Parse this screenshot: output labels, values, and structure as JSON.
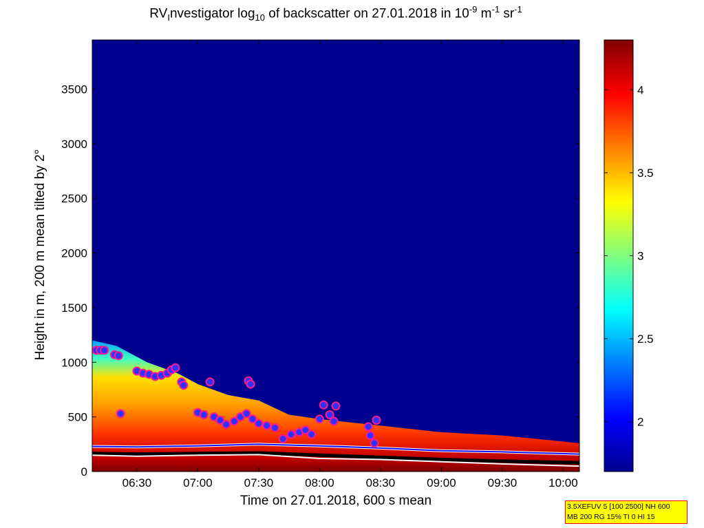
{
  "title": {
    "prefix": "RV",
    "sub1": "I",
    "part2": "nvestigator log",
    "sub2": "10",
    "part3": " of backscatter on 27.01.2018 in 10",
    "sup1": "-9",
    "part4": " m",
    "sup2": "-1",
    "part5": " sr",
    "sup3": "-1"
  },
  "info_box": {
    "line1": "3.5XEFUV 5 [100 2500] NH 600",
    "line2": "MB 200 RG 15% TI 0 HI 15"
  },
  "chart_data": {
    "type": "heatmap",
    "xlabel": "Time on 27.01.2018, 600 s mean",
    "ylabel": "Height in m, 200 m mean tilted by 2°",
    "xlim": [
      "06:08",
      "10:08"
    ],
    "ylim": [
      0,
      3950
    ],
    "x_ticks": [
      "06:30",
      "07:00",
      "07:30",
      "08:00",
      "08:30",
      "09:00",
      "09:30",
      "10:00"
    ],
    "y_ticks": [
      0,
      500,
      1000,
      1500,
      2000,
      2500,
      3000,
      3500
    ],
    "colorbar": {
      "range": [
        1.7,
        4.3
      ],
      "ticks": [
        2,
        2.5,
        3,
        3.5,
        4
      ],
      "tick_labels": [
        "2",
        "2.5",
        "3",
        "3.5",
        "4"
      ],
      "colormap": "jet"
    },
    "background_color": "#00008f",
    "layer_top_height": [
      {
        "t": "06:08",
        "h": 1200
      },
      {
        "t": "06:20",
        "h": 1150
      },
      {
        "t": "06:35",
        "h": 1000
      },
      {
        "t": "06:50",
        "h": 900
      },
      {
        "t": "07:00",
        "h": 800
      },
      {
        "t": "07:15",
        "h": 700
      },
      {
        "t": "07:30",
        "h": 650
      },
      {
        "t": "07:45",
        "h": 520
      },
      {
        "t": "08:00",
        "h": 480
      },
      {
        "t": "08:30",
        "h": 420
      },
      {
        "t": "09:00",
        "h": 360
      },
      {
        "t": "09:30",
        "h": 330
      },
      {
        "t": "10:08",
        "h": 260
      }
    ],
    "cloud_base_markers": [
      {
        "t": "06:10",
        "h": 1110
      },
      {
        "t": "06:12",
        "h": 1110
      },
      {
        "t": "06:14",
        "h": 1110
      },
      {
        "t": "06:19",
        "h": 1070
      },
      {
        "t": "06:21",
        "h": 1060
      },
      {
        "t": "06:22",
        "h": 530
      },
      {
        "t": "06:30",
        "h": 920
      },
      {
        "t": "06:33",
        "h": 900
      },
      {
        "t": "06:36",
        "h": 890
      },
      {
        "t": "06:39",
        "h": 870
      },
      {
        "t": "06:42",
        "h": 880
      },
      {
        "t": "06:45",
        "h": 900
      },
      {
        "t": "06:47",
        "h": 930
      },
      {
        "t": "06:49",
        "h": 950
      },
      {
        "t": "06:52",
        "h": 820
      },
      {
        "t": "06:53",
        "h": 790
      },
      {
        "t": "07:00",
        "h": 540
      },
      {
        "t": "07:03",
        "h": 520
      },
      {
        "t": "07:06",
        "h": 820
      },
      {
        "t": "07:08",
        "h": 500
      },
      {
        "t": "07:11",
        "h": 470
      },
      {
        "t": "07:14",
        "h": 430
      },
      {
        "t": "07:18",
        "h": 460
      },
      {
        "t": "07:21",
        "h": 500
      },
      {
        "t": "07:24",
        "h": 530
      },
      {
        "t": "07:25",
        "h": 830
      },
      {
        "t": "07:26",
        "h": 800
      },
      {
        "t": "07:27",
        "h": 480
      },
      {
        "t": "07:30",
        "h": 440
      },
      {
        "t": "07:34",
        "h": 420
      },
      {
        "t": "07:38",
        "h": 400
      },
      {
        "t": "07:42",
        "h": 300
      },
      {
        "t": "07:46",
        "h": 340
      },
      {
        "t": "07:50",
        "h": 360
      },
      {
        "t": "07:53",
        "h": 380
      },
      {
        "t": "07:56",
        "h": 340
      },
      {
        "t": "08:00",
        "h": 480
      },
      {
        "t": "08:02",
        "h": 610
      },
      {
        "t": "08:05",
        "h": 520
      },
      {
        "t": "08:07",
        "h": 460
      },
      {
        "t": "08:08",
        "h": 600
      },
      {
        "t": "08:24",
        "h": 410
      },
      {
        "t": "08:25",
        "h": 330
      },
      {
        "t": "08:27",
        "h": 260
      },
      {
        "t": "08:28",
        "h": 470
      }
    ],
    "white_line": [
      {
        "t": "06:08",
        "h": 150
      },
      {
        "t": "06:30",
        "h": 140
      },
      {
        "t": "07:00",
        "h": 150
      },
      {
        "t": "07:30",
        "h": 155
      },
      {
        "t": "08:00",
        "h": 120
      },
      {
        "t": "08:30",
        "h": 110
      },
      {
        "t": "09:00",
        "h": 90
      },
      {
        "t": "09:30",
        "h": 70
      },
      {
        "t": "10:08",
        "h": 50
      }
    ],
    "black_line": [
      {
        "t": "06:08",
        "h": 165
      },
      {
        "t": "06:30",
        "h": 160
      },
      {
        "t": "07:00",
        "h": 165
      },
      {
        "t": "07:30",
        "h": 170
      },
      {
        "t": "08:00",
        "h": 150
      },
      {
        "t": "08:30",
        "h": 130
      },
      {
        "t": "09:00",
        "h": 110
      },
      {
        "t": "09:30",
        "h": 95
      },
      {
        "t": "10:08",
        "h": 80
      }
    ],
    "low_marker_line": [
      {
        "t": "06:08",
        "h": 230
      },
      {
        "t": "06:30",
        "h": 225
      },
      {
        "t": "07:00",
        "h": 235
      },
      {
        "t": "07:30",
        "h": 250
      },
      {
        "t": "08:00",
        "h": 235
      },
      {
        "t": "08:30",
        "h": 215
      },
      {
        "t": "09:00",
        "h": 190
      },
      {
        "t": "09:30",
        "h": 180
      },
      {
        "t": "10:08",
        "h": 160
      }
    ]
  }
}
